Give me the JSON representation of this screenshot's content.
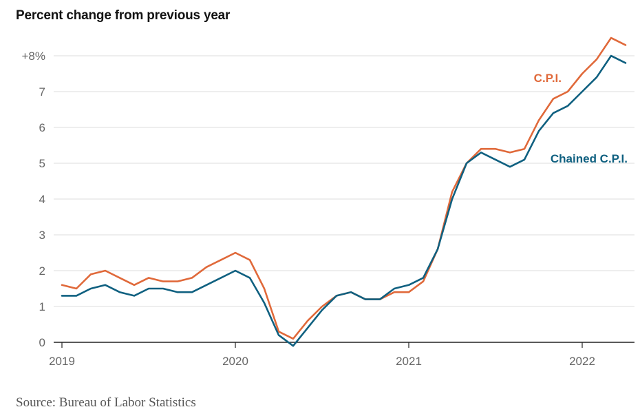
{
  "title": "Percent change from previous year",
  "source": "Source: Bureau of Labor Statistics",
  "chart_data": {
    "type": "line",
    "ylim": [
      0,
      8.5
    ],
    "y_ticks": [
      0,
      1,
      2,
      3,
      4,
      5,
      6,
      7,
      8
    ],
    "y_tick_labels": [
      "0",
      "1",
      "2",
      "3",
      "4",
      "5",
      "6",
      "7",
      "+8%"
    ],
    "x_tick_labels": [
      "2019",
      "2020",
      "2021",
      "2022"
    ],
    "grid": true,
    "series": [
      {
        "name": "C.P.I.",
        "color": "#e0693a",
        "x": [
          "2019-01",
          "2019-02",
          "2019-03",
          "2019-04",
          "2019-05",
          "2019-06",
          "2019-07",
          "2019-08",
          "2019-09",
          "2019-10",
          "2019-11",
          "2019-12",
          "2020-01",
          "2020-02",
          "2020-03",
          "2020-04",
          "2020-05",
          "2020-06",
          "2020-07",
          "2020-08",
          "2020-09",
          "2020-10",
          "2020-11",
          "2020-12",
          "2021-01",
          "2021-02",
          "2021-03",
          "2021-04",
          "2021-05",
          "2021-06",
          "2021-07",
          "2021-08",
          "2021-09",
          "2021-10",
          "2021-11",
          "2021-12",
          "2022-01",
          "2022-02",
          "2022-03",
          "2022-04"
        ],
        "values": [
          1.6,
          1.5,
          1.9,
          2.0,
          1.8,
          1.6,
          1.8,
          1.7,
          1.7,
          1.8,
          2.1,
          2.3,
          2.5,
          2.3,
          1.5,
          0.3,
          0.1,
          0.6,
          1.0,
          1.3,
          1.4,
          1.2,
          1.2,
          1.4,
          1.4,
          1.7,
          2.6,
          4.2,
          5.0,
          5.4,
          5.4,
          5.3,
          5.4,
          6.2,
          6.8,
          7.0,
          7.5,
          7.9,
          8.5,
          8.3
        ]
      },
      {
        "name": "Chained C.P.I.",
        "color": "#0f6080",
        "x": [
          "2019-01",
          "2019-02",
          "2019-03",
          "2019-04",
          "2019-05",
          "2019-06",
          "2019-07",
          "2019-08",
          "2019-09",
          "2019-10",
          "2019-11",
          "2019-12",
          "2020-01",
          "2020-02",
          "2020-03",
          "2020-04",
          "2020-05",
          "2020-06",
          "2020-07",
          "2020-08",
          "2020-09",
          "2020-10",
          "2020-11",
          "2020-12",
          "2021-01",
          "2021-02",
          "2021-03",
          "2021-04",
          "2021-05",
          "2021-06",
          "2021-07",
          "2021-08",
          "2021-09",
          "2021-10",
          "2021-11",
          "2021-12",
          "2022-01",
          "2022-02",
          "2022-03",
          "2022-04"
        ],
        "values": [
          1.3,
          1.3,
          1.5,
          1.6,
          1.4,
          1.3,
          1.5,
          1.5,
          1.4,
          1.4,
          1.6,
          1.8,
          2.0,
          1.8,
          1.1,
          0.2,
          -0.1,
          0.4,
          0.9,
          1.3,
          1.4,
          1.2,
          1.2,
          1.5,
          1.6,
          1.8,
          2.6,
          4.0,
          5.0,
          5.3,
          5.1,
          4.9,
          5.1,
          5.9,
          6.4,
          6.6,
          7.0,
          7.4,
          8.0,
          7.8
        ]
      }
    ]
  }
}
